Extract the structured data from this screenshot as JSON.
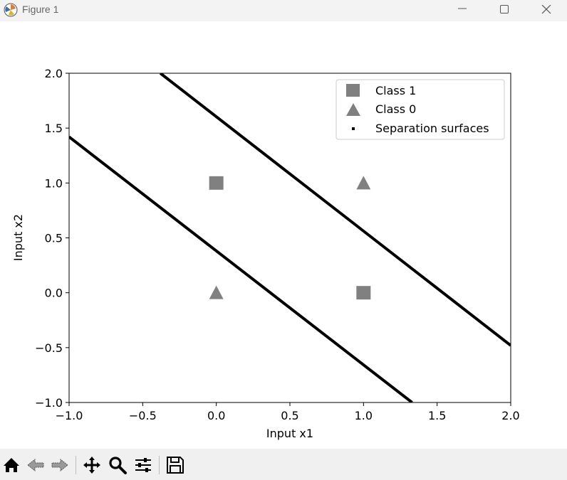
{
  "window": {
    "title": "Figure 1",
    "buttons": [
      "minimize",
      "maximize",
      "close"
    ]
  },
  "toolbar": {
    "tools": [
      {
        "name": "home-icon"
      },
      {
        "name": "back-icon"
      },
      {
        "name": "forward-icon"
      },
      {
        "name": "pan-icon"
      },
      {
        "name": "zoom-icon"
      },
      {
        "name": "configure-subplots-icon"
      },
      {
        "name": "save-icon"
      }
    ]
  },
  "chart_data": {
    "type": "scatter",
    "title": "",
    "xlabel": "Input x1",
    "ylabel": "Input x2",
    "xlim": [
      -1.0,
      2.0
    ],
    "ylim": [
      -1.0,
      2.0
    ],
    "xticks": [
      "−1.0",
      "−0.5",
      "0.0",
      "0.5",
      "1.0",
      "1.5",
      "2.0"
    ],
    "xtick_values": [
      -1.0,
      -0.5,
      0.0,
      0.5,
      1.0,
      1.5,
      2.0
    ],
    "yticks": [
      "−1.0",
      "−0.5",
      "0.0",
      "0.5",
      "1.0",
      "1.5",
      "2.0"
    ],
    "ytick_values": [
      -1.0,
      -0.5,
      0.0,
      0.5,
      1.0,
      1.5,
      2.0
    ],
    "grid": false,
    "legend_position": "top-right",
    "series": [
      {
        "name": "Class 1",
        "marker": "square",
        "color": "#808080",
        "points": [
          [
            0,
            1
          ],
          [
            1,
            0
          ]
        ]
      },
      {
        "name": "Class 0",
        "marker": "triangle",
        "color": "#808080",
        "points": [
          [
            0,
            0
          ],
          [
            1,
            1
          ]
        ]
      },
      {
        "name": "Separation surfaces",
        "marker": "line",
        "color": "#000000",
        "lines": [
          [
            [
              -1.0,
              1.42
            ],
            [
              1.33,
              -1.0
            ]
          ],
          [
            [
              -0.38,
              2.0
            ],
            [
              2.0,
              -0.48
            ]
          ]
        ]
      }
    ]
  }
}
